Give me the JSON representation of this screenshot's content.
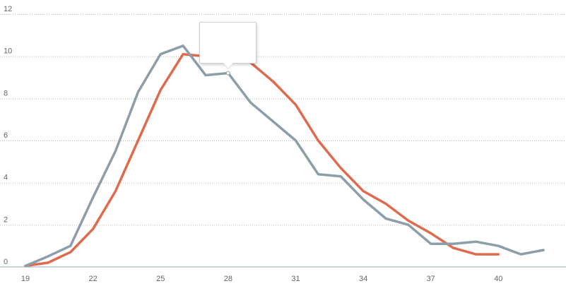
{
  "chart_data": {
    "type": "line",
    "x": [
      19,
      20,
      21,
      22,
      23,
      24,
      25,
      26,
      27,
      28,
      29,
      30,
      31,
      32,
      33,
      34,
      35,
      36,
      37,
      38,
      39,
      40,
      41,
      42
    ],
    "xticks": [
      19,
      22,
      25,
      28,
      31,
      34,
      37,
      40
    ],
    "yticks": [
      0,
      2,
      4,
      6,
      8,
      10,
      12
    ],
    "xlim": [
      19,
      42.5
    ],
    "ylim": [
      0,
      12
    ],
    "grid": "horizontal dotted",
    "title": "",
    "xlabel": "",
    "ylabel": "",
    "series": [
      {
        "color": "#e06a4e",
        "values": [
          0.05,
          0.2,
          0.7,
          1.8,
          3.6,
          6.0,
          8.4,
          10.1,
          10.0,
          9.9,
          9.7,
          8.8,
          7.7,
          6.0,
          4.7,
          3.6,
          3.0,
          2.2,
          1.6,
          0.9,
          0.6,
          0.6,
          null,
          null
        ]
      },
      {
        "color": "#8c9ea8",
        "values": [
          0.05,
          0.5,
          1.0,
          3.3,
          5.5,
          8.3,
          10.1,
          10.5,
          9.1,
          9.2,
          7.8,
          6.9,
          6.0,
          4.4,
          4.3,
          3.2,
          2.3,
          2.0,
          1.1,
          1.1,
          1.2,
          1.0,
          0.6,
          0.8
        ]
      }
    ]
  },
  "tooltip": {
    "anchor": {
      "series": 1,
      "x": 28
    }
  }
}
